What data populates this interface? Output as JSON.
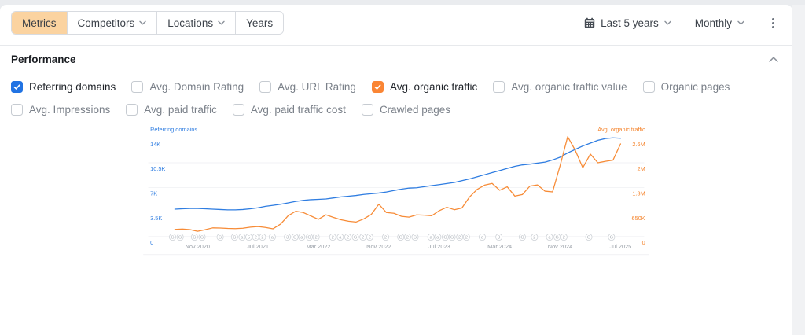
{
  "toolbar": {
    "tabs": [
      {
        "label": "Metrics",
        "active": true,
        "has_dropdown": false
      },
      {
        "label": "Competitors",
        "active": false,
        "has_dropdown": true
      },
      {
        "label": "Locations",
        "active": false,
        "has_dropdown": true
      },
      {
        "label": "Years",
        "active": false,
        "has_dropdown": false
      }
    ],
    "date_range": "Last 5 years",
    "granularity": "Monthly"
  },
  "icons": [
    "calendar-icon",
    "chevron-down-icon",
    "chevron-up-icon",
    "kebab-menu-icon",
    "checkmark-icon"
  ],
  "performance": {
    "title": "Performance",
    "metrics_row1": [
      {
        "label": "Referring domains",
        "checked": true,
        "color": "#2173e3"
      },
      {
        "label": "Avg. Domain Rating",
        "checked": false
      },
      {
        "label": "Avg. URL Rating",
        "checked": false
      },
      {
        "label": "Avg. organic traffic",
        "checked": true,
        "color": "#fa8534"
      },
      {
        "label": "Avg. organic traffic value",
        "checked": false
      },
      {
        "label": "Organic pages",
        "checked": false
      }
    ],
    "metrics_row2": [
      {
        "label": "Avg. Impressions",
        "checked": false
      },
      {
        "label": "Avg. paid traffic",
        "checked": false
      },
      {
        "label": "Avg. paid traffic cost",
        "checked": false
      },
      {
        "label": "Crawled pages",
        "checked": false
      }
    ]
  },
  "chart_data": {
    "type": "line",
    "months_count": 60,
    "x_range": [
      "Aug 2020",
      "Jul 2025"
    ],
    "x_ticks": [
      {
        "m": 3,
        "label": "Nov 2020"
      },
      {
        "m": 11,
        "label": "Jul 2021"
      },
      {
        "m": 19,
        "label": "Mar 2022"
      },
      {
        "m": 27,
        "label": "Nov 2022"
      },
      {
        "m": 35,
        "label": "Jul 2023"
      },
      {
        "m": 43,
        "label": "Mar 2024"
      },
      {
        "m": 51,
        "label": "Nov 2024"
      },
      {
        "m": 59,
        "label": "Jul 2025"
      }
    ],
    "left_axis": {
      "title": "Referring domains",
      "color": "#2f7de1",
      "max": 14000,
      "tick_labels_top_to_bottom": [
        "14K",
        "10.5K",
        "7K",
        "3.5K",
        "0"
      ]
    },
    "right_axis": {
      "title": "Avg. organic traffic",
      "color": "#f5842d",
      "max": 2600000,
      "tick_labels_top_to_bottom": [
        "2.6M",
        "2M",
        "1.3M",
        "650K",
        "0"
      ]
    },
    "grid": true,
    "legend_position": "axis-titles",
    "series": [
      {
        "name": "Referring domains",
        "axis": "left",
        "color": "#2f7de1",
        "values": [
          3900,
          3950,
          4000,
          4000,
          3950,
          3900,
          3850,
          3800,
          3800,
          3850,
          3950,
          4100,
          4300,
          4450,
          4600,
          4800,
          5000,
          5150,
          5250,
          5300,
          5350,
          5500,
          5650,
          5750,
          5850,
          6000,
          6100,
          6200,
          6350,
          6550,
          6750,
          6900,
          6950,
          7100,
          7250,
          7400,
          7550,
          7700,
          7950,
          8200,
          8500,
          8800,
          9100,
          9400,
          9700,
          10000,
          10200,
          10300,
          10450,
          10600,
          10900,
          11300,
          11900,
          12400,
          12900,
          13300,
          13700,
          13950,
          14050,
          14000
        ]
      },
      {
        "name": "Avg. organic traffic",
        "axis": "right",
        "color": "#f78b36",
        "values": [
          190000,
          200000,
          185000,
          140000,
          180000,
          230000,
          225000,
          215000,
          210000,
          220000,
          250000,
          265000,
          240000,
          205000,
          330000,
          550000,
          670000,
          635000,
          545000,
          455000,
          575000,
          505000,
          445000,
          405000,
          385000,
          465000,
          585000,
          855000,
          635000,
          615000,
          535000,
          515000,
          575000,
          565000,
          550000,
          685000,
          775000,
          710000,
          755000,
          1045000,
          1245000,
          1360000,
          1405000,
          1225000,
          1315000,
          1070000,
          1110000,
          1335000,
          1365000,
          1200000,
          1180000,
          1880000,
          2640000,
          2280000,
          1820000,
          2180000,
          1950000,
          1990000,
          2020000,
          2450000
        ]
      }
    ],
    "events": [
      {
        "m": -0.3,
        "label": "G"
      },
      {
        "m": 0.7,
        "label": "G"
      },
      {
        "m": 2.6,
        "label": "G"
      },
      {
        "m": 3.6,
        "label": "G"
      },
      {
        "m": 6.0,
        "label": "G"
      },
      {
        "m": 7.9,
        "label": "G"
      },
      {
        "m": 8.9,
        "label": "a"
      },
      {
        "m": 9.8,
        "label": "5"
      },
      {
        "m": 10.7,
        "label": "2"
      },
      {
        "m": 11.6,
        "label": "2"
      },
      {
        "m": 12.9,
        "label": "a"
      },
      {
        "m": 14.9,
        "label": "3"
      },
      {
        "m": 15.9,
        "label": "G"
      },
      {
        "m": 16.8,
        "label": "a"
      },
      {
        "m": 17.8,
        "label": "G"
      },
      {
        "m": 18.7,
        "label": "2"
      },
      {
        "m": 20.9,
        "label": "2"
      },
      {
        "m": 21.9,
        "label": "a"
      },
      {
        "m": 22.9,
        "label": "2"
      },
      {
        "m": 23.9,
        "label": "G"
      },
      {
        "m": 24.9,
        "label": "2"
      },
      {
        "m": 25.8,
        "label": "2"
      },
      {
        "m": 27.9,
        "label": "2"
      },
      {
        "m": 29.9,
        "label": "G"
      },
      {
        "m": 30.8,
        "label": "2"
      },
      {
        "m": 31.8,
        "label": "G"
      },
      {
        "m": 33.9,
        "label": "a"
      },
      {
        "m": 34.8,
        "label": "a"
      },
      {
        "m": 35.8,
        "label": "G"
      },
      {
        "m": 36.7,
        "label": "G"
      },
      {
        "m": 37.7,
        "label": "2"
      },
      {
        "m": 38.6,
        "label": "2"
      },
      {
        "m": 40.7,
        "label": "a"
      },
      {
        "m": 42.9,
        "label": "3"
      },
      {
        "m": 46.0,
        "label": "G"
      },
      {
        "m": 47.6,
        "label": "2"
      },
      {
        "m": 49.6,
        "label": "a"
      },
      {
        "m": 50.6,
        "label": "G"
      },
      {
        "m": 51.5,
        "label": "2"
      },
      {
        "m": 54.8,
        "label": "G"
      },
      {
        "m": 57.8,
        "label": "G"
      }
    ]
  }
}
